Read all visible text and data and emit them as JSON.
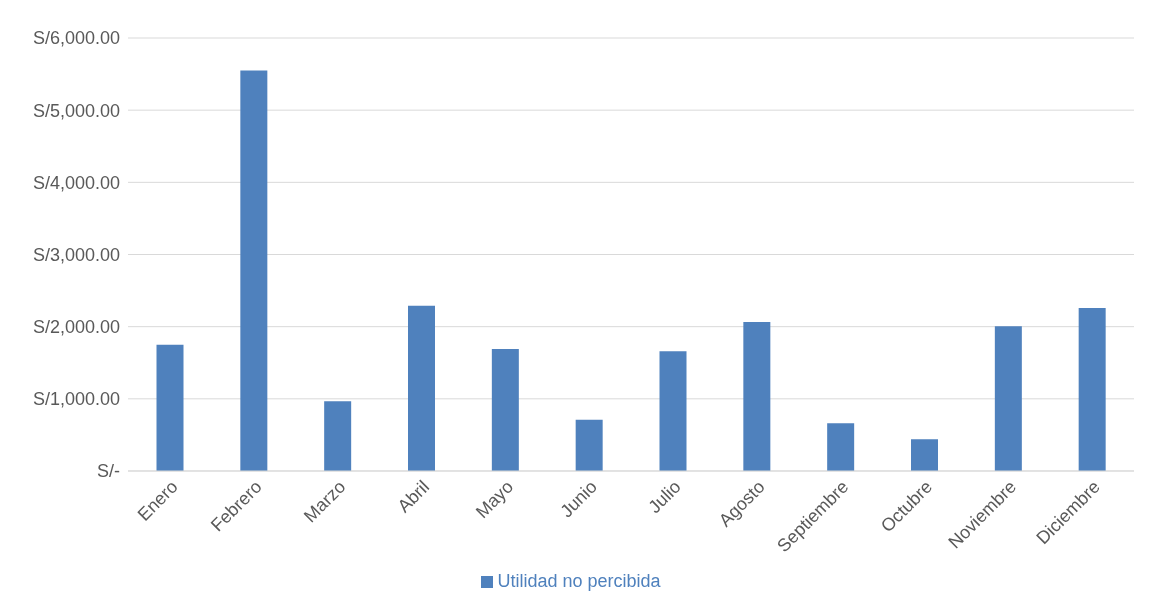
{
  "chart_data": {
    "type": "bar",
    "categories": [
      "Enero",
      "Febrero",
      "Marzo",
      "Abril",
      "Mayo",
      "Junio",
      "Julio",
      "Agosto",
      "Septiembre",
      "Octubre",
      "Noviembre",
      "Diciembre"
    ],
    "series": [
      {
        "name": "Utilidad no percibida",
        "color": "#4f81bd",
        "values": [
          1750,
          5550,
          965,
          2290,
          1690,
          710,
          1660,
          2065,
          660,
          440,
          2005,
          2260
        ]
      }
    ],
    "ylim": [
      0,
      6000
    ],
    "yticks": [
      {
        "value": 0,
        "label": "S/-"
      },
      {
        "value": 1000,
        "label": "S/1,000.00"
      },
      {
        "value": 2000,
        "label": "S/2,000.00"
      },
      {
        "value": 3000,
        "label": "S/3,000.00"
      },
      {
        "value": 4000,
        "label": "S/4,000.00"
      },
      {
        "value": 5000,
        "label": "S/5,000.00"
      },
      {
        "value": 6000,
        "label": "S/6,000.00"
      }
    ],
    "grid": "y",
    "legend": "bottom"
  }
}
